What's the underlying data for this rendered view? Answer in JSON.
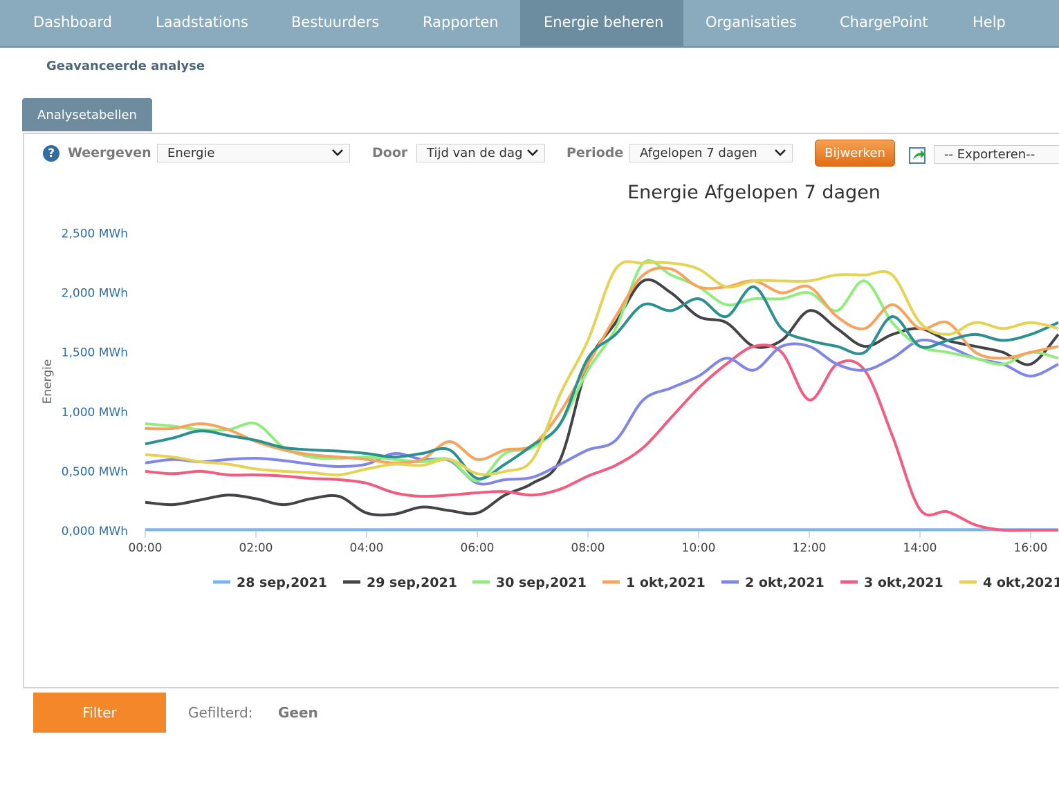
{
  "nav": {
    "items": [
      {
        "label": "Dashboard",
        "active": false
      },
      {
        "label": "Laadstations",
        "active": false
      },
      {
        "label": "Bestuurders",
        "active": false
      },
      {
        "label": "Rapporten",
        "active": false
      },
      {
        "label": "Energie beheren",
        "active": true
      },
      {
        "label": "Organisaties",
        "active": false
      },
      {
        "label": "ChargePoint",
        "active": false
      },
      {
        "label": "Help",
        "active": false
      }
    ]
  },
  "page": {
    "subtitle": "Geavanceerde analyse",
    "tab": "Analysetabellen"
  },
  "controls": {
    "help_icon": "?",
    "show_label": "Weergeven",
    "show_value": "Energie",
    "by_label": "Door",
    "by_value": "Tijd van de dag",
    "period_label": "Periode",
    "period_value": "Afgelopen 7 dagen",
    "update_button": "Bijwerken",
    "export_value": "-- Exporteren--"
  },
  "filter": {
    "button": "Filter",
    "label": "Gefilterd:",
    "value": "Geen"
  },
  "colors": {
    "nav_bg": "#8aabbe",
    "nav_active": "#6b8d9f",
    "accent_orange": "#f4872a",
    "axis_label": "#2f6ea3"
  },
  "chart_data": {
    "type": "line",
    "title": "Energie Afgelopen 7 dagen",
    "ylabel": "Energie",
    "xlabel": "",
    "x_unit": "hours",
    "xlim": [
      0,
      16.5
    ],
    "ylim": [
      0,
      2500
    ],
    "y_ticks": [
      "0,000 MWh",
      "0,500 MWh",
      "1,000 MWh",
      "1,500 MWh",
      "2,000 MWh",
      "2,500 MWh"
    ],
    "y_tick_values": [
      0,
      500,
      1000,
      1500,
      2000,
      2500
    ],
    "x_ticks": [
      "00:00",
      "02:00",
      "04:00",
      "06:00",
      "08:00",
      "10:00",
      "12:00",
      "14:00",
      "16:00"
    ],
    "x_tick_values": [
      0,
      2,
      4,
      6,
      8,
      10,
      12,
      14,
      16
    ],
    "grid": false,
    "legend_position": "bottom",
    "x": [
      0,
      0.5,
      1,
      1.5,
      2,
      2.5,
      3,
      3.5,
      4,
      4.5,
      5,
      5.5,
      6,
      6.5,
      7,
      7.5,
      8,
      8.5,
      9,
      9.5,
      10,
      10.5,
      11,
      11.5,
      12,
      12.5,
      13,
      13.5,
      14,
      14.5,
      15,
      15.5,
      16,
      16.5
    ],
    "series": [
      {
        "name": "28 sep,2021",
        "color": "#7cb5ec",
        "values": [
          10,
          10,
          10,
          10,
          10,
          10,
          10,
          10,
          10,
          10,
          10,
          10,
          10,
          10,
          10,
          10,
          10,
          10,
          10,
          10,
          10,
          10,
          10,
          10,
          10,
          10,
          10,
          10,
          10,
          10,
          10,
          10,
          10,
          10
        ]
      },
      {
        "name": "29 sep,2021",
        "color": "#434348",
        "values": [
          240,
          220,
          260,
          300,
          270,
          220,
          270,
          290,
          150,
          140,
          200,
          170,
          150,
          300,
          400,
          600,
          1400,
          1750,
          2100,
          2000,
          1800,
          1750,
          1550,
          1600,
          1850,
          1700,
          1550,
          1650,
          1700,
          1600,
          1550,
          1500,
          1400,
          1650
        ]
      },
      {
        "name": "30 sep,2021",
        "color": "#90ed7d",
        "values": [
          900,
          880,
          850,
          850,
          900,
          700,
          620,
          610,
          620,
          600,
          580,
          600,
          420,
          650,
          700,
          900,
          1350,
          1700,
          2250,
          2150,
          2050,
          1900,
          1950,
          1950,
          2000,
          1850,
          2100,
          1750,
          1550,
          1500,
          1450,
          1400,
          1500,
          1450
        ]
      },
      {
        "name": "1 okt,2021",
        "color": "#f7a35c",
        "values": [
          860,
          860,
          900,
          850,
          750,
          680,
          640,
          620,
          600,
          570,
          600,
          750,
          600,
          680,
          720,
          1000,
          1400,
          1800,
          2150,
          2200,
          2050,
          2050,
          2100,
          2000,
          2050,
          1800,
          1700,
          1900,
          1700,
          1750,
          1500,
          1450,
          1500,
          1550
        ]
      },
      {
        "name": "2 okt,2021",
        "color": "#8085e9",
        "values": [
          570,
          600,
          580,
          600,
          610,
          590,
          560,
          540,
          560,
          650,
          600,
          590,
          400,
          430,
          450,
          560,
          680,
          760,
          1100,
          1200,
          1300,
          1450,
          1350,
          1550,
          1550,
          1400,
          1350,
          1450,
          1600,
          1550,
          1450,
          1400,
          1300,
          1400
        ]
      },
      {
        "name": "3 okt,2021",
        "color": "#f15c80",
        "values": [
          500,
          480,
          500,
          470,
          470,
          460,
          440,
          430,
          400,
          320,
          290,
          300,
          320,
          330,
          300,
          350,
          460,
          550,
          700,
          950,
          1200,
          1400,
          1550,
          1500,
          1100,
          1400,
          1350,
          800,
          180,
          160,
          50,
          0,
          0,
          0
        ]
      },
      {
        "name": "4 okt,2021",
        "color": "#e4d354",
        "values": [
          640,
          620,
          580,
          560,
          520,
          500,
          490,
          470,
          520,
          560,
          550,
          600,
          480,
          500,
          600,
          1150,
          1600,
          2200,
          2250,
          2250,
          2200,
          2050,
          2100,
          2100,
          2100,
          2150,
          2150,
          2150,
          1750,
          1650,
          1750,
          1700,
          1750,
          1700
        ]
      },
      {
        "name": "",
        "color": "#2b908f",
        "values": [
          730,
          780,
          840,
          800,
          760,
          700,
          680,
          670,
          650,
          620,
          650,
          680,
          440,
          560,
          720,
          900,
          1450,
          1650,
          1900,
          1850,
          1950,
          1800,
          2050,
          1700,
          1600,
          1550,
          1500,
          1800,
          1550,
          1600,
          1650,
          1600,
          1650,
          1750
        ]
      }
    ]
  }
}
